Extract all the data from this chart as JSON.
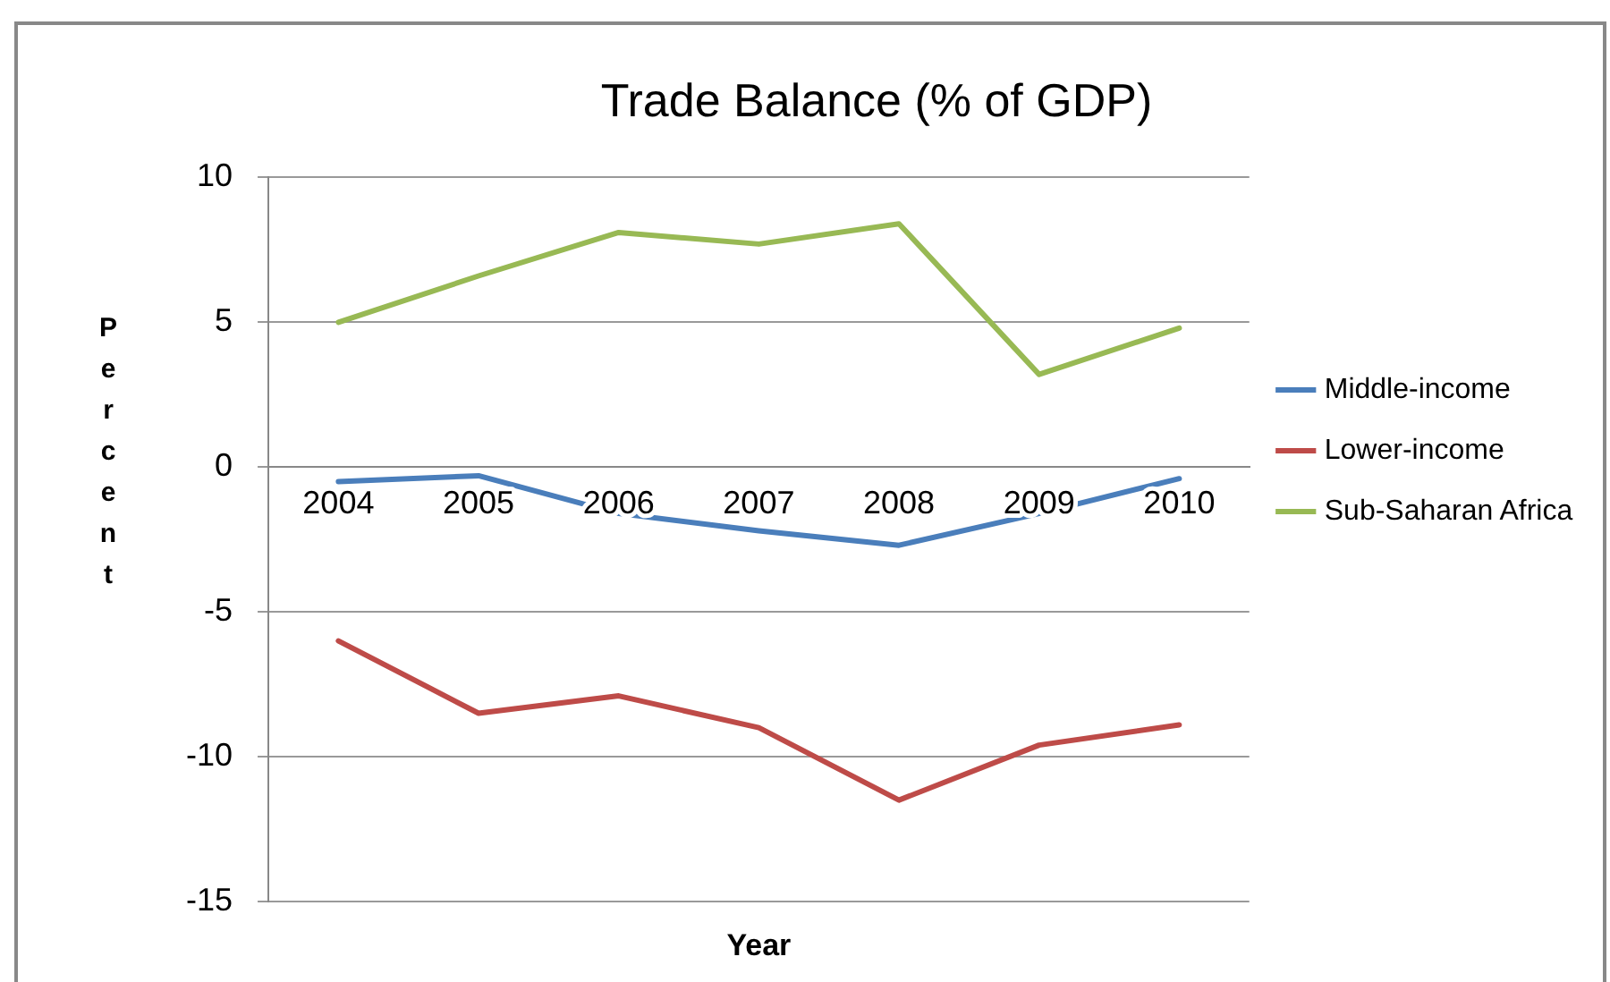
{
  "chart_data": {
    "type": "line",
    "title": "Trade Balance (% of GDP)",
    "xlabel": "Year",
    "ylabel": "Percent",
    "categories": [
      "2004",
      "2005",
      "2006",
      "2007",
      "2008",
      "2009",
      "2010"
    ],
    "series": [
      {
        "name": "Middle-income",
        "color": "#4a7ebb",
        "values": [
          -0.5,
          -0.3,
          -1.6,
          -2.2,
          -2.7,
          -1.6,
          -0.4
        ]
      },
      {
        "name": "Lower-income",
        "color": "#be4b48",
        "values": [
          -6.0,
          -8.5,
          -7.9,
          -9.0,
          -11.5,
          -9.6,
          -8.9
        ]
      },
      {
        "name": "Sub-Saharan Africa",
        "color": "#98b954",
        "values": [
          5.0,
          6.6,
          8.1,
          7.7,
          8.4,
          3.2,
          4.8
        ]
      }
    ],
    "ylim": [
      -15,
      10
    ],
    "yticks": [
      -15,
      -10,
      -5,
      0,
      5,
      10
    ],
    "grid": "y",
    "legend": "right",
    "marker": "none",
    "line_style": "solid"
  }
}
